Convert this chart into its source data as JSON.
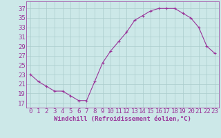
{
  "x": [
    0,
    1,
    2,
    3,
    4,
    5,
    6,
    7,
    8,
    9,
    10,
    11,
    12,
    13,
    14,
    15,
    16,
    17,
    18,
    19,
    20,
    21,
    22,
    23
  ],
  "y": [
    23,
    21.5,
    20.5,
    19.5,
    19.5,
    18.5,
    17.5,
    17.5,
    21.5,
    25.5,
    28,
    30,
    32,
    34.5,
    35.5,
    36.5,
    37,
    37,
    37,
    36,
    35,
    33,
    29,
    27.5
  ],
  "line_color": "#993399",
  "marker": "+",
  "marker_size": 3,
  "bg_color": "#cce8e8",
  "grid_color": "#aacccc",
  "xlabel": "Windchill (Refroidissement éolien,°C)",
  "xlabel_color": "#993399",
  "yticks": [
    17,
    19,
    21,
    23,
    25,
    27,
    29,
    31,
    33,
    35,
    37
  ],
  "xticks": [
    0,
    1,
    2,
    3,
    4,
    5,
    6,
    7,
    8,
    9,
    10,
    11,
    12,
    13,
    14,
    15,
    16,
    17,
    18,
    19,
    20,
    21,
    22,
    23
  ],
  "ylim": [
    16.0,
    38.5
  ],
  "xlim": [
    -0.5,
    23.5
  ],
  "tick_color": "#993399",
  "font_size": 6.5,
  "xlabel_fontsize": 6.5,
  "linewidth": 0.8,
  "markeredgewidth": 0.8
}
